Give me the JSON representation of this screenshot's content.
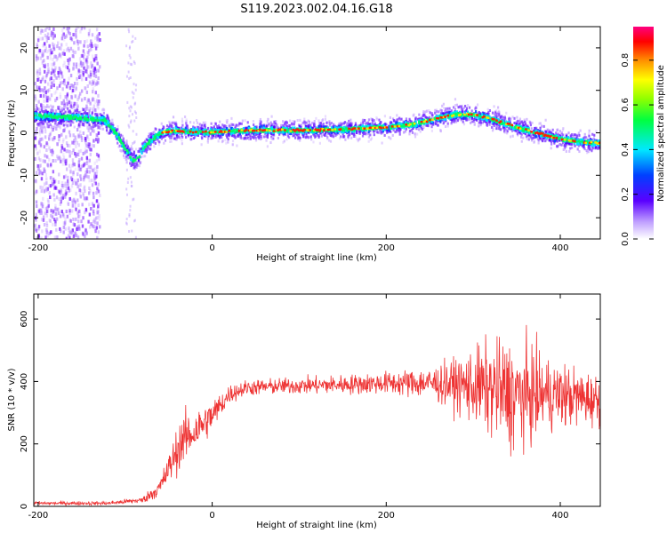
{
  "title": "S119.2023.002.04.16.G18",
  "chart_data": [
    {
      "type": "heatmap",
      "xlabel": "Height of straight line (km)",
      "ylabel": "Frequency (Hz)",
      "xlim": [
        -205,
        446
      ],
      "ylim": [
        -25,
        25
      ],
      "xticks": [
        -200,
        0,
        200,
        400
      ],
      "yticks": [
        -20,
        -10,
        0,
        10,
        20
      ],
      "ridge": {
        "x": [
          -205,
          -180,
          -150,
          -125,
          -112,
          -100,
          -92,
          -86,
          -80,
          -70,
          -60,
          -45,
          -30,
          0,
          50,
          100,
          150,
          200,
          230,
          260,
          280,
          300,
          320,
          350,
          380,
          400,
          420,
          446
        ],
        "y": [
          4,
          3.8,
          3.5,
          3,
          0,
          -4,
          -6.5,
          -6,
          -3.5,
          -1.5,
          0,
          0.5,
          0.3,
          0.2,
          0.6,
          0.6,
          0.8,
          1.3,
          2,
          3.5,
          4.3,
          4.3,
          3.2,
          1.2,
          -0.5,
          -1.5,
          -2.1,
          -2.5
        ]
      },
      "noise_region_x": [
        -205,
        -130
      ],
      "colorbar": {
        "label": "Normalized spectral amplitude",
        "range": [
          0.0,
          0.95
        ],
        "ticks": [
          0.0,
          0.2,
          0.4,
          0.6,
          0.8
        ]
      },
      "grid": false
    },
    {
      "type": "line",
      "xlabel": "Height of straight line (km)",
      "ylabel": "SNR (10 * v/v)",
      "xlim": [
        -205,
        446
      ],
      "ylim": [
        0,
        680
      ],
      "xticks": [
        -200,
        0,
        200,
        400
      ],
      "yticks": [
        0,
        200,
        400,
        600
      ],
      "color": "#ee3333",
      "envelope": {
        "x": [
          -205,
          -120,
          -80,
          -60,
          -45,
          -35,
          -20,
          0,
          20,
          40,
          80,
          150,
          200,
          250,
          280,
          300,
          330,
          350,
          380,
          420,
          446
        ],
        "mean": [
          10,
          10,
          20,
          60,
          150,
          210,
          240,
          290,
          360,
          380,
          385,
          390,
          395,
          395,
          390,
          385,
          370,
          350,
          360,
          350,
          340
        ],
        "spread": [
          6,
          6,
          10,
          30,
          60,
          80,
          70,
          50,
          30,
          25,
          25,
          30,
          35,
          50,
          80,
          120,
          160,
          180,
          120,
          90,
          80
        ]
      },
      "grid": false
    }
  ]
}
